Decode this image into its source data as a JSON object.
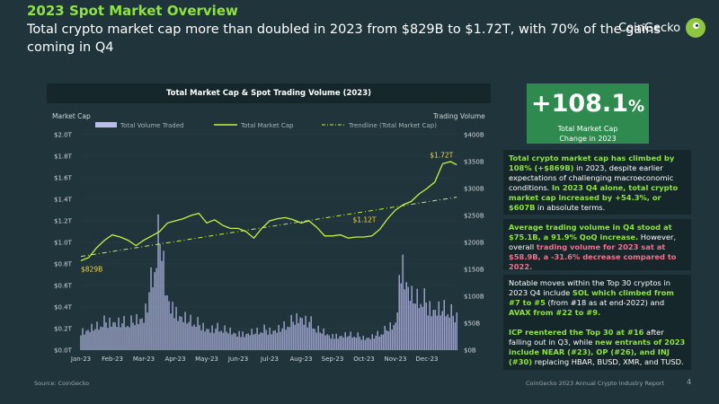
{
  "header": {
    "title": "2023 Spot Market Overview",
    "subtitle": "Total crypto market cap more than doubled in 2023 from $829B to $1.72T, with 70% of the gains coming in Q4",
    "brand": "CoinGecko"
  },
  "stat": {
    "value": "+108.1",
    "unit": "%",
    "label_line1": "Total Market Cap",
    "label_line2": "Change in 2023"
  },
  "panels": {
    "p1_a": "Total crypto market cap has climbed by 108% (+$869B)",
    "p1_b": " in 2023, despite earlier expectations of challenging macroeconomic conditions. ",
    "p1_c": "In 2023 Q4 alone, total crypto market cap increased by +54.3%, or $607B",
    "p1_d": " in absolute terms.",
    "p2_a": "Average trading volume in Q4 stood at $75.1B, a 91.9% QoQ increase.",
    "p2_b": " However, overall ",
    "p2_c": "trading volume for 2023 sat at $58.9B, a -31.6% decrease compared to 2022.",
    "p3_a": "Notable moves within the Top 30 cryptos in 2023 Q4 include ",
    "p3_b": "SOL which climbed from #7 to #5",
    "p3_c": " (from #18 as at end-2022) and ",
    "p3_d": "AVAX from #22 to #9.",
    "p3_e": "ICP reentered the Top 30 at #16",
    "p3_f": " after falling out in Q3, while ",
    "p3_g": "new entrants of 2023 include NEAR (#23), OP (#26), and INJ (#30)",
    "p3_h": " replacing HBAR, BUSD, XMR, and TUSD."
  },
  "footer": {
    "source": "Source: CoinGecko",
    "report": "CoinGecko 2023 Annual Crypto Industry Report",
    "page": "4"
  },
  "colors": {
    "accent": "#8ee33f",
    "volume": "#b9bde8",
    "annotation": "#f7d43c",
    "stat_bg": "#2e8a4e",
    "negative": "#f0718d"
  },
  "chart_data": {
    "type": "bar+line",
    "title": "Total Market Cap & Spot Trading Volume (2023)",
    "y_left_label": "Market Cap",
    "y_right_label": "Trading Volume",
    "y_left_ticks": [
      "$0.0T",
      "$0.2T",
      "$0.4T",
      "$0.6T",
      "$0.8T",
      "$1.0T",
      "$1.2T",
      "$1.4T",
      "$1.6T",
      "$1.8T",
      "$2.0T"
    ],
    "y_right_ticks": [
      "$0B",
      "$50B",
      "$100B",
      "$150B",
      "$200B",
      "$250B",
      "$300B",
      "$350B",
      "$400B"
    ],
    "y_left_range": [
      0,
      2.0
    ],
    "y_right_range": [
      0,
      400
    ],
    "x_ticks": [
      "Jan-23",
      "Feb-23",
      "Mar-23",
      "Apr-23",
      "May-23",
      "Jun-23",
      "Jul-23",
      "Aug-23",
      "Sep-23",
      "Oct-23",
      "Nov-23",
      "Dec-23"
    ],
    "legend": [
      "Total Volume Traded",
      "Total Market Cap",
      "Trendline (Total Market Cap)"
    ],
    "legend_position": "top",
    "market_cap_trillions": {
      "x_month": [
        0,
        0.25,
        0.5,
        0.75,
        1.0,
        1.25,
        1.5,
        1.75,
        2.0,
        2.25,
        2.5,
        2.75,
        3.0,
        3.25,
        3.5,
        3.75,
        4.0,
        4.25,
        4.5,
        4.75,
        5.0,
        5.25,
        5.5,
        5.75,
        6.0,
        6.25,
        6.5,
        6.75,
        7.0,
        7.25,
        7.5,
        7.75,
        8.0,
        8.25,
        8.5,
        8.75,
        9.0,
        9.25,
        9.5,
        9.75,
        10.0,
        10.25,
        10.5,
        10.75,
        11.0,
        11.25,
        11.5,
        11.75,
        11.95
      ],
      "values": [
        0.83,
        0.86,
        0.95,
        1.02,
        1.07,
        1.05,
        1.02,
        0.97,
        1.02,
        1.06,
        1.1,
        1.18,
        1.2,
        1.22,
        1.25,
        1.27,
        1.18,
        1.21,
        1.16,
        1.13,
        1.13,
        1.1,
        1.04,
        1.13,
        1.2,
        1.22,
        1.23,
        1.21,
        1.18,
        1.2,
        1.14,
        1.06,
        1.06,
        1.07,
        1.04,
        1.05,
        1.05,
        1.06,
        1.12,
        1.22,
        1.3,
        1.35,
        1.38,
        1.45,
        1.5,
        1.56,
        1.73,
        1.75,
        1.72
      ]
    },
    "trendline_trillions": {
      "start": 0.87,
      "end": 1.42
    },
    "volume_billions": {
      "x_month": [
        0.0,
        0.5,
        1.0,
        1.5,
        2.0,
        2.3,
        2.5,
        2.7,
        3.0,
        3.5,
        4.0,
        4.5,
        5.0,
        5.5,
        6.0,
        6.5,
        7.0,
        7.5,
        8.0,
        8.5,
        9.0,
        9.5,
        10.0,
        10.2,
        10.5,
        11.0,
        11.5,
        11.95
      ],
      "values": [
        40,
        45,
        60,
        50,
        70,
        140,
        240,
        120,
        80,
        55,
        45,
        40,
        35,
        35,
        40,
        45,
        70,
        40,
        30,
        30,
        25,
        30,
        55,
        190,
        105,
        90,
        80,
        65
      ]
    },
    "annotations": [
      {
        "label": "$829B",
        "x_month": 0.0,
        "value": 0.83
      },
      {
        "label": "$1.12T",
        "x_month": 9.5,
        "value": 1.12
      },
      {
        "label": "$1.72T",
        "x_month": 11.95,
        "value": 1.72
      }
    ]
  }
}
